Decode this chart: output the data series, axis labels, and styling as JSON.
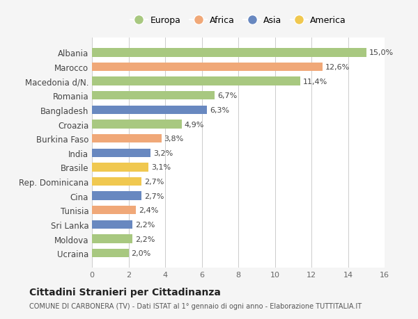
{
  "categories": [
    "Albania",
    "Marocco",
    "Macedonia d/N.",
    "Romania",
    "Bangladesh",
    "Croazia",
    "Burkina Faso",
    "India",
    "Brasile",
    "Rep. Dominicana",
    "Cina",
    "Tunisia",
    "Sri Lanka",
    "Moldova",
    "Ucraina"
  ],
  "values": [
    15.0,
    12.6,
    11.4,
    6.7,
    6.3,
    4.9,
    3.8,
    3.2,
    3.1,
    2.7,
    2.7,
    2.4,
    2.2,
    2.2,
    2.0
  ],
  "labels": [
    "15,0%",
    "12,6%",
    "11,4%",
    "6,7%",
    "6,3%",
    "4,9%",
    "3,8%",
    "3,2%",
    "3,1%",
    "2,7%",
    "2,7%",
    "2,4%",
    "2,2%",
    "2,2%",
    "2,0%"
  ],
  "continents": [
    "Europa",
    "Africa",
    "Europa",
    "Europa",
    "Asia",
    "Europa",
    "Africa",
    "Asia",
    "America",
    "America",
    "Asia",
    "Africa",
    "Asia",
    "Europa",
    "Europa"
  ],
  "colors": {
    "Europa": "#a8c880",
    "Africa": "#f0a878",
    "Asia": "#6888c0",
    "America": "#f0c850"
  },
  "legend_order": [
    "Europa",
    "Africa",
    "Asia",
    "America"
  ],
  "title": "Cittadini Stranieri per Cittadinanza",
  "subtitle": "COMUNE DI CARBONERA (TV) - Dati ISTAT al 1° gennaio di ogni anno - Elaborazione TUTTITALIA.IT",
  "xlim": [
    0,
    16
  ],
  "xticks": [
    0,
    2,
    4,
    6,
    8,
    10,
    12,
    14,
    16
  ],
  "background_color": "#f5f5f5",
  "bar_background": "#ffffff",
  "grid_color": "#cccccc"
}
